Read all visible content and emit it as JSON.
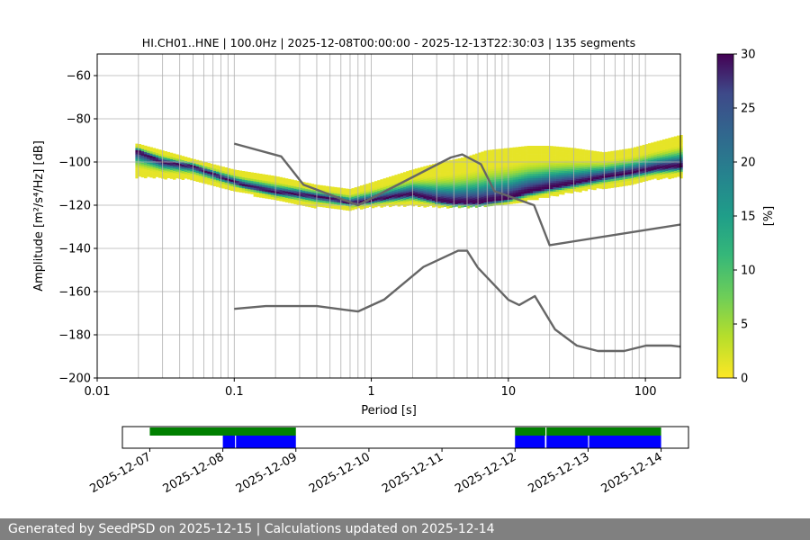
{
  "chart_data": {
    "type": "heatmap",
    "title": "HI.CH01..HNE | 100.0Hz | 2025-12-08T00:00:00 - 2025-12-13T22:30:03 | 135 segments",
    "xlabel": "Period [s]",
    "ylabel": "Amplitude [m²/s⁴/Hz] [dB]",
    "x_scale": "log",
    "xlim": [
      0.01,
      180
    ],
    "ylim": [
      -200,
      -50
    ],
    "x_ticks": [
      0.01,
      0.1,
      1,
      10,
      100
    ],
    "x_tick_labels": [
      "0.01",
      "0.1",
      "1",
      "10",
      "100"
    ],
    "y_ticks": [
      -200,
      -180,
      -160,
      -140,
      -120,
      -100,
      -80,
      -60
    ],
    "y_tick_labels": [
      "−200",
      "−180",
      "−160",
      "−140",
      "−120",
      "−100",
      "−80",
      "−60"
    ],
    "grid": true,
    "colorbar": {
      "label": "[%]",
      "range": [
        0,
        30
      ],
      "ticks": [
        0,
        5,
        10,
        15,
        20,
        25,
        30
      ],
      "tick_labels": [
        "0",
        "5",
        "10",
        "15",
        "20",
        "25",
        "30"
      ],
      "colormap": "viridis_r"
    },
    "psd_mode": [
      [
        0.02,
        -95
      ],
      [
        0.03,
        -100
      ],
      [
        0.05,
        -102
      ],
      [
        0.08,
        -107
      ],
      [
        0.12,
        -111
      ],
      [
        0.2,
        -114
      ],
      [
        0.3,
        -115
      ],
      [
        0.5,
        -117
      ],
      [
        0.7,
        -119
      ],
      [
        1.0,
        -118
      ],
      [
        1.5,
        -116
      ],
      [
        2.0,
        -115
      ],
      [
        3.0,
        -118
      ],
      [
        4.0,
        -119
      ],
      [
        6.0,
        -119
      ],
      [
        8.0,
        -118
      ],
      [
        10.0,
        -117
      ],
      [
        14.0,
        -114
      ],
      [
        20.0,
        -112
      ],
      [
        30.0,
        -110
      ],
      [
        50.0,
        -107
      ],
      [
        80.0,
        -105
      ],
      [
        120.0,
        -103
      ],
      [
        180.0,
        -102
      ]
    ],
    "psd_upper": [
      [
        0.02,
        -92
      ],
      [
        0.05,
        -99
      ],
      [
        0.1,
        -104
      ],
      [
        0.2,
        -107
      ],
      [
        0.4,
        -111
      ],
      [
        0.7,
        -113
      ],
      [
        1.0,
        -110
      ],
      [
        2.0,
        -104
      ],
      [
        3.0,
        -101
      ],
      [
        5.0,
        -98
      ],
      [
        7.0,
        -95
      ],
      [
        10.0,
        -94
      ],
      [
        14.0,
        -93
      ],
      [
        20.0,
        -93
      ],
      [
        30.0,
        -94
      ],
      [
        50.0,
        -96
      ],
      [
        80.0,
        -94
      ],
      [
        120.0,
        -91
      ],
      [
        180.0,
        -88
      ]
    ],
    "psd_lower": [
      [
        0.02,
        -107
      ],
      [
        0.05,
        -108
      ],
      [
        0.1,
        -113
      ],
      [
        0.2,
        -118
      ],
      [
        0.4,
        -121
      ],
      [
        0.7,
        -122
      ],
      [
        1.0,
        -121
      ],
      [
        2.0,
        -120
      ],
      [
        3.0,
        -121
      ],
      [
        5.0,
        -121
      ],
      [
        10.0,
        -120
      ],
      [
        14.0,
        -118
      ],
      [
        20.0,
        -116
      ],
      [
        30.0,
        -114
      ],
      [
        50.0,
        -112
      ],
      [
        80.0,
        -110
      ],
      [
        120.0,
        -108
      ],
      [
        180.0,
        -107
      ]
    ],
    "series": [
      {
        "id": "nhnm",
        "color": "#666666",
        "points": [
          [
            0.1,
            -91.5
          ],
          [
            0.22,
            -97.4
          ],
          [
            0.32,
            -110.5
          ],
          [
            0.8,
            -120
          ],
          [
            3.8,
            -97.9
          ],
          [
            4.6,
            -96.5
          ],
          [
            6.3,
            -101
          ],
          [
            7.9,
            -113.5
          ],
          [
            15.4,
            -120
          ],
          [
            20,
            -138.5
          ],
          [
            354.8,
            -126
          ]
        ]
      },
      {
        "id": "nlnm",
        "color": "#666666",
        "points": [
          [
            0.1,
            -168
          ],
          [
            0.17,
            -166.7
          ],
          [
            0.4,
            -166.7
          ],
          [
            0.8,
            -169.2
          ],
          [
            1.24,
            -163.7
          ],
          [
            2.4,
            -148.6
          ],
          [
            4.3,
            -141.1
          ],
          [
            5,
            -141.1
          ],
          [
            6,
            -149
          ],
          [
            10,
            -163.8
          ],
          [
            12,
            -166.2
          ],
          [
            15.6,
            -162.1
          ],
          [
            21.9,
            -177.5
          ],
          [
            31.6,
            -185
          ],
          [
            45,
            -187.5
          ],
          [
            70,
            -187.5
          ],
          [
            101,
            -185
          ],
          [
            154,
            -185
          ],
          [
            328,
            -187.5
          ]
        ]
      }
    ]
  },
  "timeline": {
    "date_labels": [
      "2025-12-07",
      "2025-12-08",
      "2025-12-09",
      "2025-12-10",
      "2025-12-11",
      "2025-12-12",
      "2025-12-13",
      "2025-12-14"
    ],
    "range": [
      "2025-12-06T15:00:00",
      "2025-12-14T09:00:00"
    ],
    "green_spans": [
      [
        "2025-12-07T00:00:00",
        "2025-12-09T00:00:00"
      ],
      [
        "2025-12-12T00:00:00",
        "2025-12-12T10:00:00"
      ],
      [
        "2025-12-12T10:20:00",
        "2025-12-14T00:00:00"
      ]
    ],
    "blue_spans": [
      [
        "2025-12-08T00:00:00",
        "2025-12-08T04:00:00"
      ],
      [
        "2025-12-08T04:20:00",
        "2025-12-09T00:00:00"
      ],
      [
        "2025-12-12T00:00:00",
        "2025-12-12T09:50:00"
      ],
      [
        "2025-12-12T10:20:00",
        "2025-12-13T00:00:00"
      ],
      [
        "2025-12-13T00:20:00",
        "2025-12-14T00:00:00"
      ]
    ],
    "green_color": "#008000",
    "blue_color": "#0000ff"
  },
  "footer": {
    "text": "Generated by SeedPSD on 2025-12-15 | Calculations updated on 2025-12-14"
  }
}
